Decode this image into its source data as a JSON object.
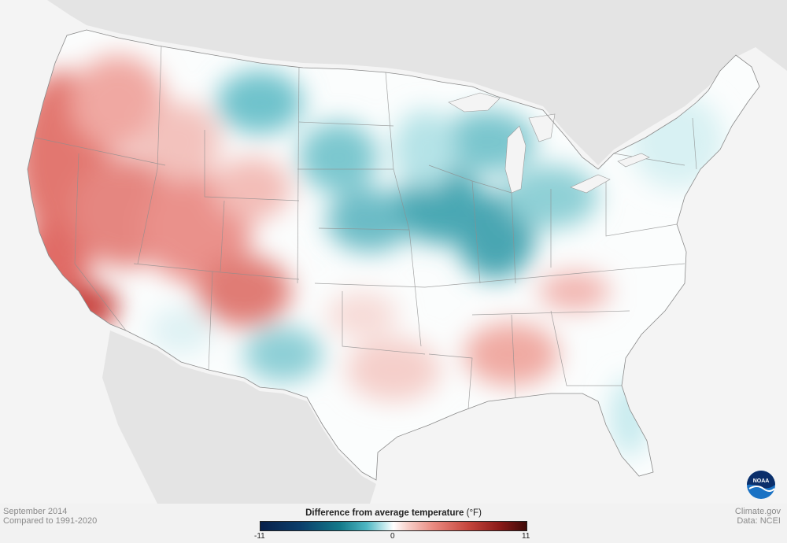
{
  "caption_left": {
    "line1": "September 2014",
    "line2": "Compared to 1991-2020"
  },
  "caption_right": {
    "line1": "Climate.gov",
    "line2": "Data: NCEI"
  },
  "legend": {
    "title_bold": "Difference from average temperature",
    "title_unit": "(°F)",
    "min_label": "-11",
    "mid_label": "0",
    "max_label": "11",
    "range": [
      -11,
      11
    ]
  },
  "logo": {
    "text": "NOAA",
    "icon": "noaa-logo-icon"
  },
  "colors": {
    "land_outside": "#e6e6e6",
    "water": "#f4f4f4",
    "warm": "#d9605a",
    "cool": "#2f9aa6",
    "neutral": "#ffffff"
  }
}
